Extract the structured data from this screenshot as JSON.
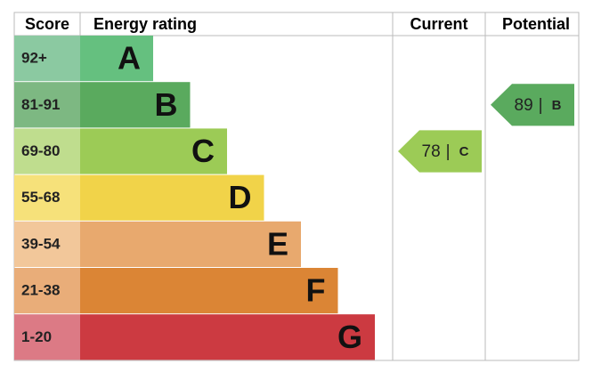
{
  "header": {
    "score": "Score",
    "rating": "Energy rating",
    "current": "Current",
    "potential": "Potential"
  },
  "bands": [
    {
      "score": "92+",
      "letter": "A"
    },
    {
      "score": "81-91",
      "letter": "B"
    },
    {
      "score": "69-80",
      "letter": "C"
    },
    {
      "score": "55-68",
      "letter": "D"
    },
    {
      "score": "39-54",
      "letter": "E"
    },
    {
      "score": "21-38",
      "letter": "F"
    },
    {
      "score": "1-20",
      "letter": "G"
    }
  ],
  "separator": "|",
  "current": {
    "value": 78,
    "letter": "C"
  },
  "potential": {
    "value": 89,
    "letter": "B"
  }
}
